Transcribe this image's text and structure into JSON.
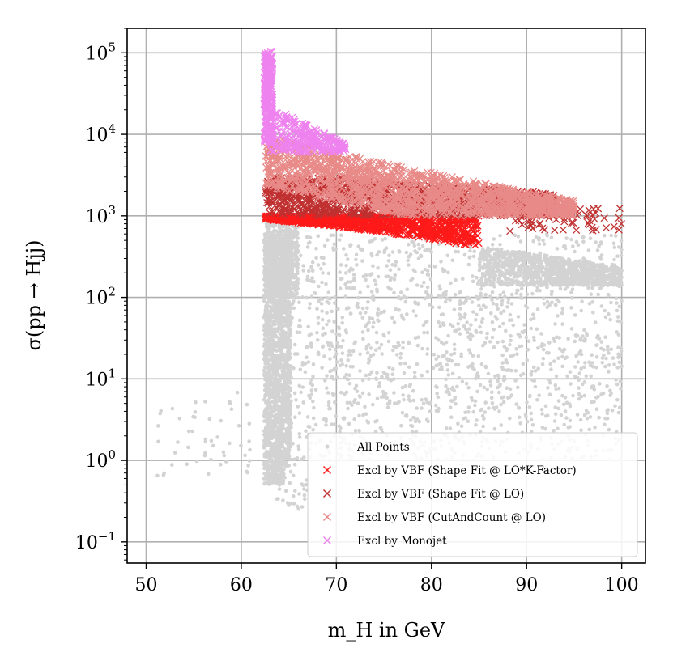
{
  "chart_data": {
    "type": "scatter",
    "title": "",
    "xlabel": "m_H in GeV",
    "ylabel": "σ(pp → Hjj)",
    "x_scale": "linear",
    "y_scale": "log",
    "xlim": [
      48,
      102.5
    ],
    "ylim": [
      0.055,
      200000
    ],
    "x_ticks": [
      50,
      60,
      70,
      80,
      90,
      100
    ],
    "y_ticks": [
      {
        "value": 0.1,
        "base": "10",
        "exp": "−1"
      },
      {
        "value": 1,
        "base": "10",
        "exp": "0"
      },
      {
        "value": 10,
        "base": "10",
        "exp": "1"
      },
      {
        "value": 100,
        "base": "10",
        "exp": "2"
      },
      {
        "value": 1000,
        "base": "10",
        "exp": "3"
      },
      {
        "value": 10000,
        "base": "10",
        "exp": "4"
      },
      {
        "value": 100000,
        "base": "10",
        "exp": "5"
      }
    ],
    "grid": true,
    "legend_position": "lower-right",
    "series": [
      {
        "name": "All Points",
        "marker": "dot",
        "color": "#d3d3d3",
        "regions": [
          {
            "x": [
              62.5,
              100
            ],
            "y": [
              3,
              600
            ],
            "n": 1400,
            "dist": "logx"
          },
          {
            "x": [
              62.5,
              100
            ],
            "y": [
              1,
              3
            ],
            "n": 260
          },
          {
            "x": [
              62.4,
              65.2
            ],
            "y": [
              1,
              600
            ],
            "n": 1600
          },
          {
            "x": [
              62.4,
              64.5
            ],
            "y": [
              0.5,
              1
            ],
            "n": 180
          },
          {
            "x": [
              63.5,
              67
            ],
            "y": [
              0.25,
              1.2
            ],
            "n": 40
          },
          {
            "x": [
              50,
              61
            ],
            "y": [
              0.6,
              7
            ],
            "n": 55
          },
          {
            "x": [
              85,
              100
            ],
            "y": [
              140,
              400
            ],
            "n": 1100,
            "lower_curve": true
          },
          {
            "x": [
              62.5,
              66
            ],
            "y": [
              100,
              1000
            ],
            "n": 600
          }
        ]
      },
      {
        "name": "Excl by VBF (Shape Fit @ LO*K-Factor)",
        "marker": "x",
        "color": "#ff1a1a",
        "regions": [
          {
            "x": [
              62.5,
              85
            ],
            "y": [
              500,
              1050
            ],
            "n": 900,
            "band": "red"
          }
        ]
      },
      {
        "name": "Excl by VBF (Shape Fit @ LO)",
        "marker": "x",
        "color": "#c03030",
        "regions": [
          {
            "x": [
              62.5,
              93
            ],
            "y": [
              1000,
              2000
            ],
            "n": 1100,
            "band": "dark"
          },
          {
            "x": [
              88,
              100
            ],
            "y": [
              650,
              1300
            ],
            "n": 60
          }
        ]
      },
      {
        "name": "Excl by VBF (CutAndCount @ LO)",
        "marker": "x",
        "color": "#e88a88",
        "regions": [
          {
            "x": [
              62.5,
              95
            ],
            "y": [
              1500,
              8000
            ],
            "n": 1500,
            "band": "pink"
          }
        ]
      },
      {
        "name": "Excl by Monojet",
        "marker": "x",
        "color": "#ee82ee",
        "regions": [
          {
            "x": [
              62.4,
              63.3
            ],
            "y": [
              8000,
              105000
            ],
            "n": 300
          },
          {
            "x": [
              63,
              71
            ],
            "y": [
              6000,
              20000
            ],
            "n": 260,
            "band": "mono"
          }
        ]
      }
    ]
  }
}
